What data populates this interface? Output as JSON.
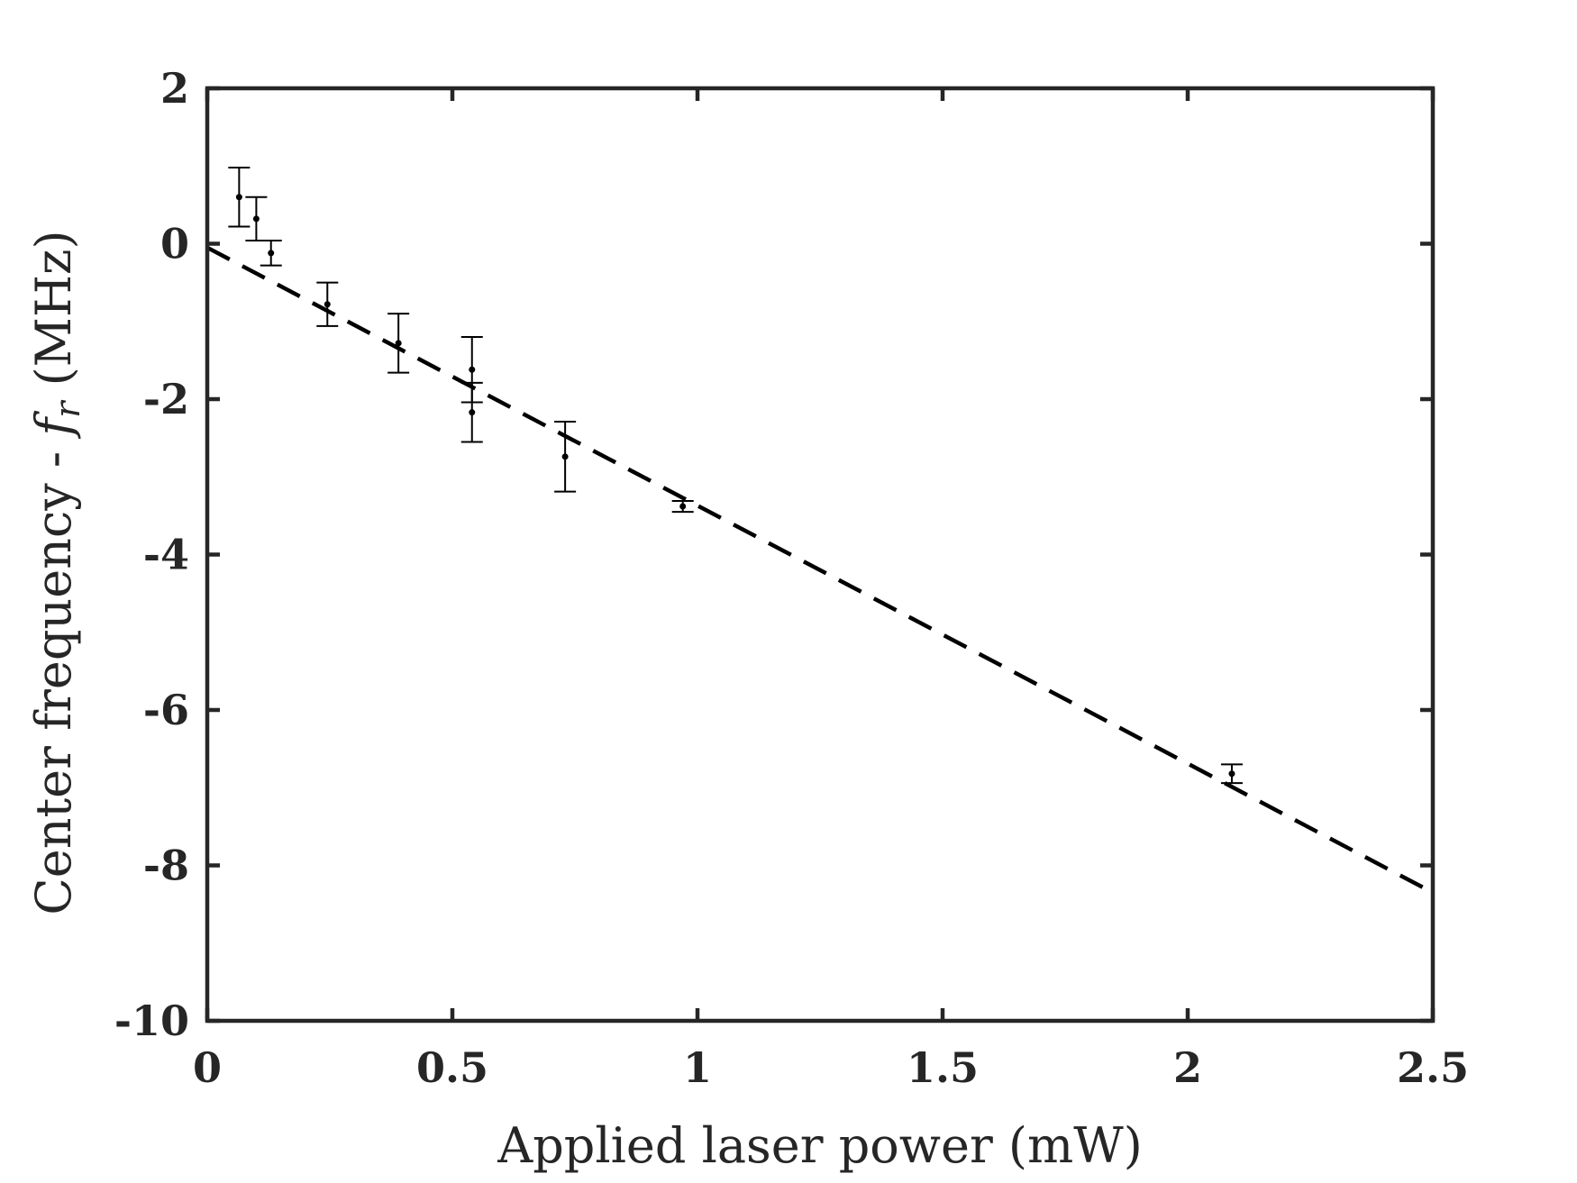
{
  "chart_data": {
    "type": "scatter",
    "xlabel": "Applied laser power (mW)",
    "ylabel_prefix": "Center frequency - ",
    "ylabel_symbol": "f",
    "ylabel_subscript": "r",
    "ylabel_suffix": " (MHz)",
    "xlim": [
      0,
      2.5
    ],
    "ylim": [
      -10,
      2
    ],
    "xticks": [
      0,
      0.5,
      1,
      1.5,
      2,
      2.5
    ],
    "xtick_labels": [
      "0",
      "0.5",
      "1",
      "1.5",
      "2",
      "2.5"
    ],
    "yticks": [
      -10,
      -8,
      -6,
      -4,
      -2,
      0,
      2
    ],
    "ytick_labels": [
      "-10",
      "-8",
      "-6",
      "-4",
      "-2",
      "0",
      "2"
    ],
    "grid": false,
    "series": [
      {
        "type": "errorbar",
        "color": "#000000",
        "points": [
          {
            "x": 0.065,
            "y": 0.6,
            "err": 0.38
          },
          {
            "x": 0.1,
            "y": 0.32,
            "err": 0.28
          },
          {
            "x": 0.13,
            "y": -0.12,
            "err": 0.16
          },
          {
            "x": 0.245,
            "y": -0.78,
            "err": 0.28
          },
          {
            "x": 0.39,
            "y": -1.28,
            "err": 0.38
          },
          {
            "x": 0.54,
            "y": -1.62,
            "err": 0.42
          },
          {
            "x": 0.54,
            "y": -2.17,
            "err": 0.38
          },
          {
            "x": 0.73,
            "y": -2.74,
            "err": 0.45
          },
          {
            "x": 0.97,
            "y": -3.38,
            "err": 0.07
          },
          {
            "x": 2.09,
            "y": -6.82,
            "err": 0.12
          }
        ]
      },
      {
        "type": "line",
        "style": "dashed",
        "color": "#000000",
        "x": [
          0,
          2.5
        ],
        "y": [
          -0.05,
          -8.35
        ]
      }
    ]
  }
}
